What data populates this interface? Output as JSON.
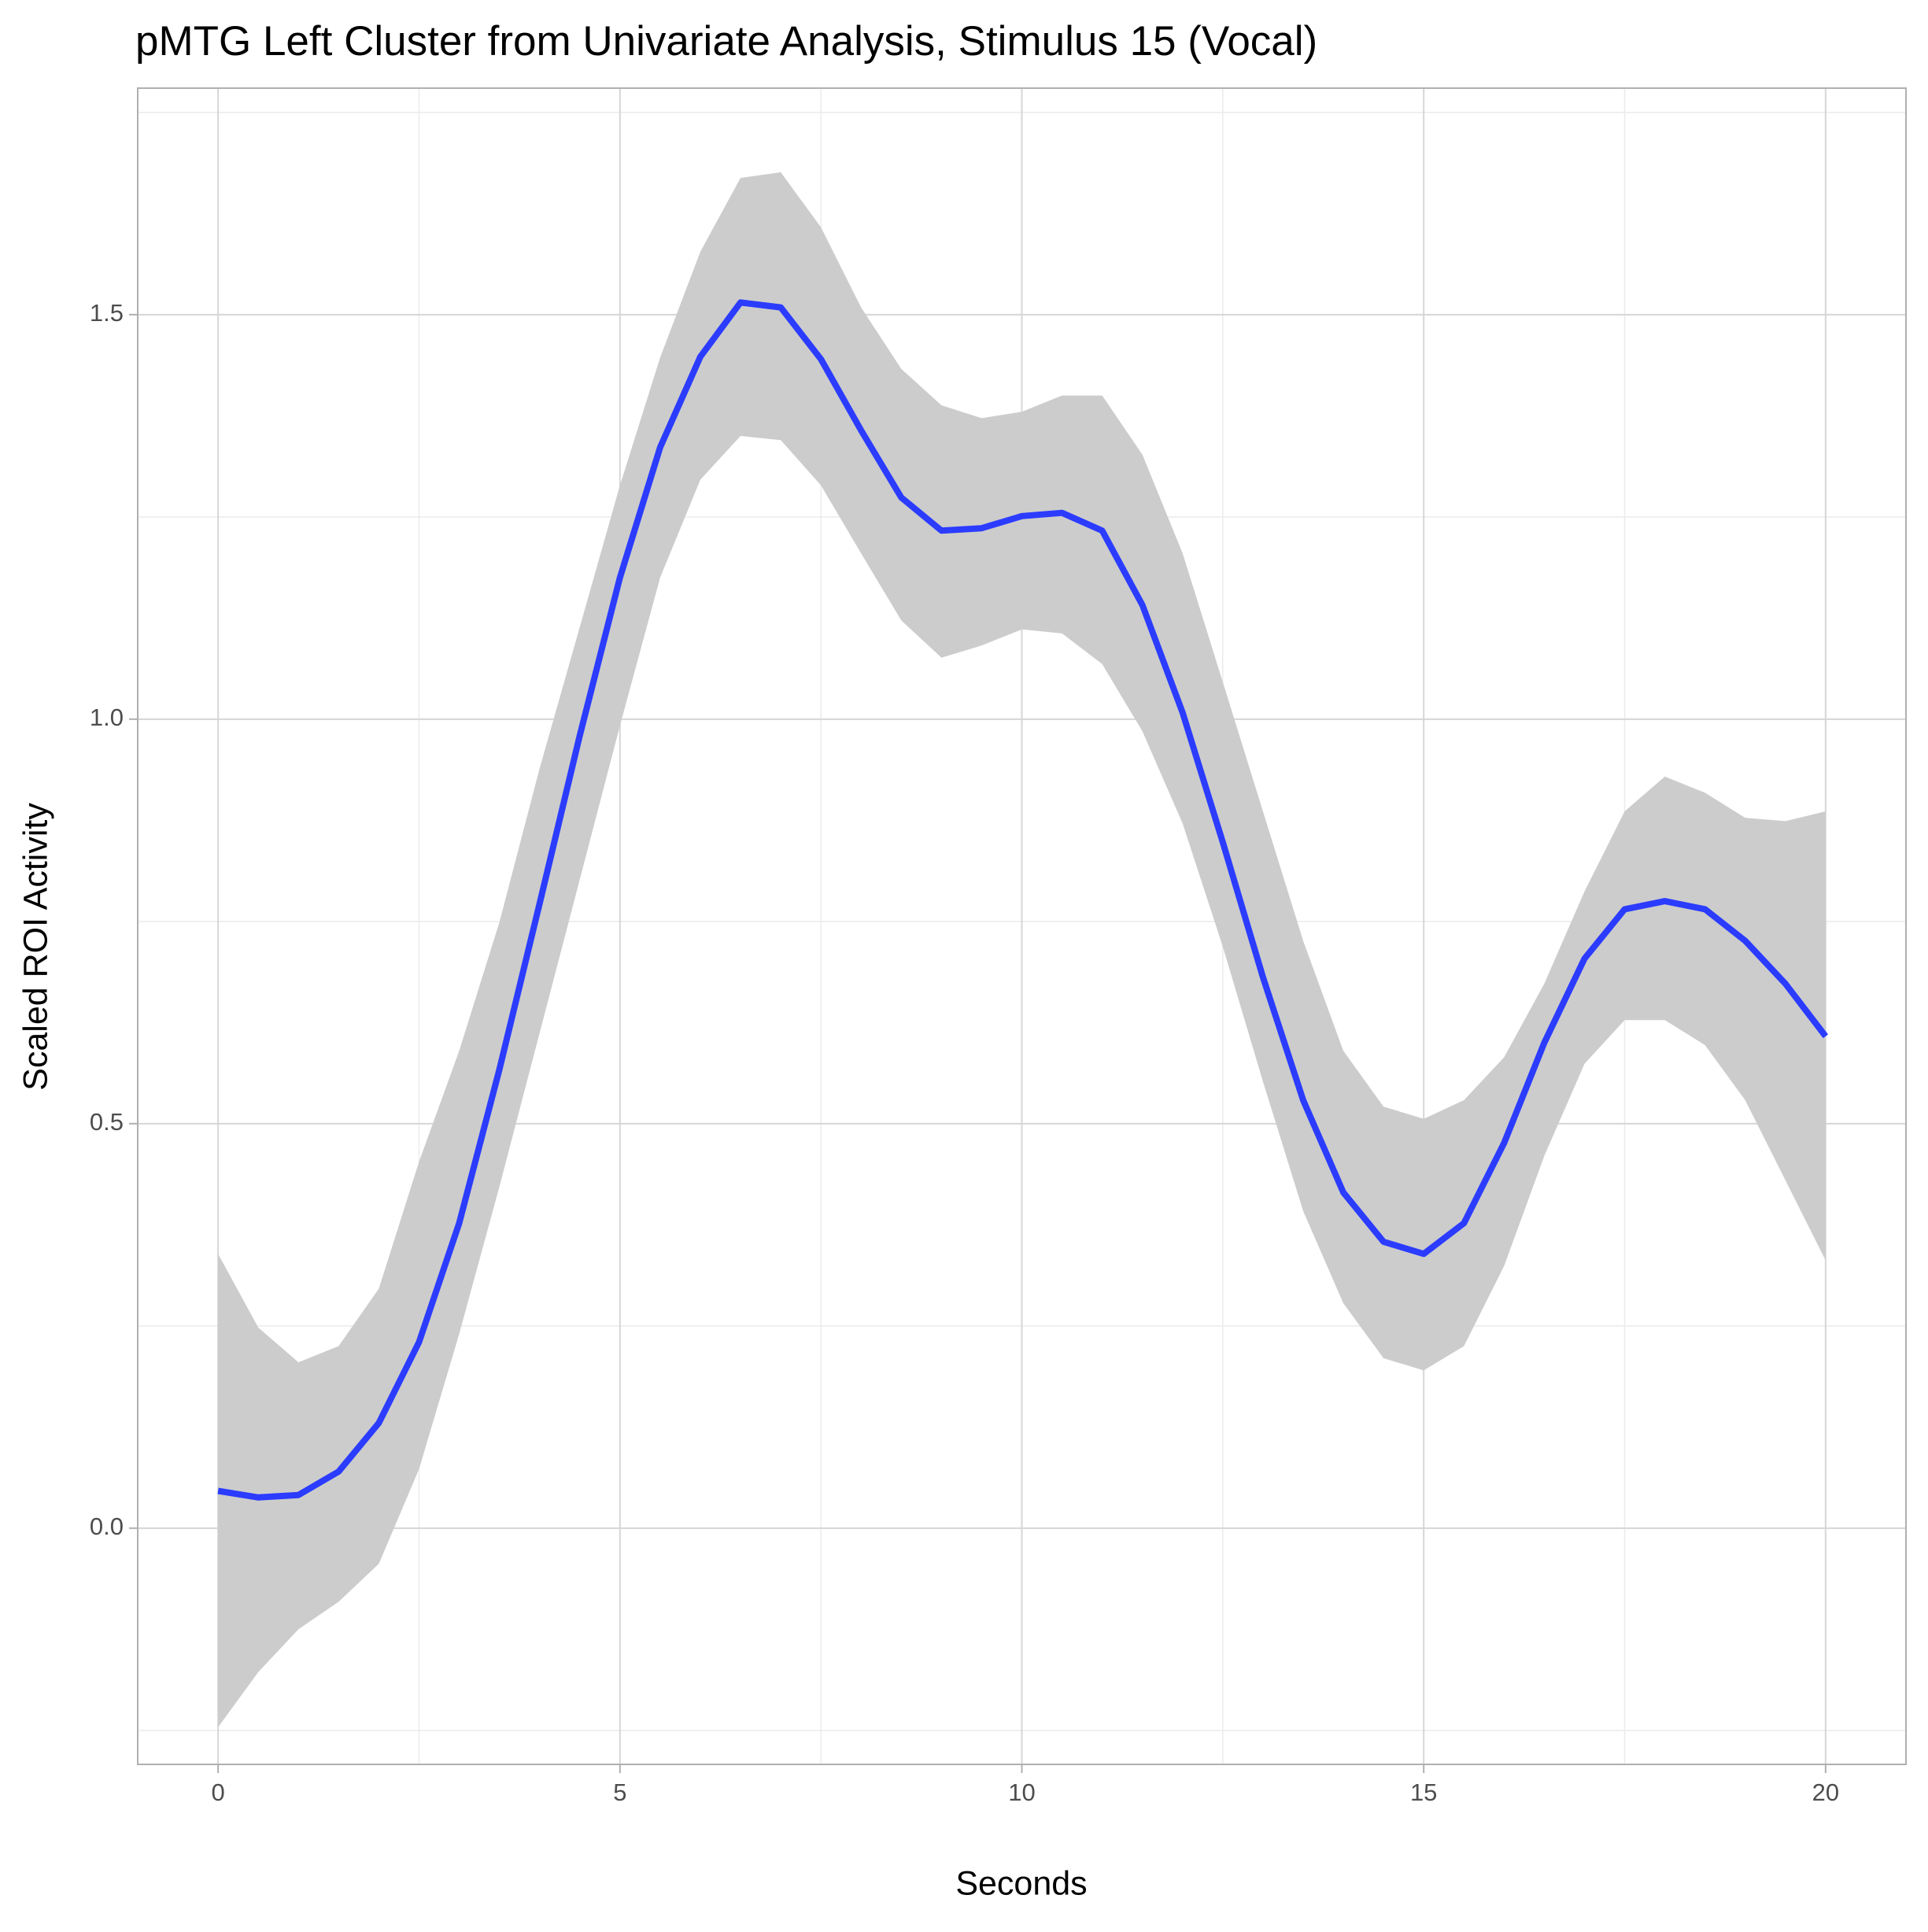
{
  "chart_data": {
    "type": "line",
    "title": "pMTG Left Cluster from Univariate Analysis, Stimulus 15 (Vocal)",
    "x_label": "Seconds",
    "y_label": "Scaled ROI Activity",
    "x": [
      0,
      0.5,
      1,
      1.5,
      2,
      2.5,
      3,
      3.5,
      4,
      4.5,
      5,
      5.5,
      6,
      6.5,
      7,
      7.5,
      8,
      8.5,
      9,
      9.5,
      10,
      10.5,
      11,
      11.5,
      12,
      12.5,
      13,
      13.5,
      14,
      14.5,
      15,
      15.5,
      16,
      16.5,
      17,
      17.5,
      18,
      18.5,
      19,
      19.5,
      20
    ],
    "series": [
      {
        "color": "#2b3cff",
        "band_color": "#cccccc",
        "values": [
          0.046,
          0.038,
          0.041,
          0.07,
          0.13,
          0.23,
          0.377,
          0.567,
          0.772,
          0.98,
          1.175,
          1.336,
          1.448,
          1.515,
          1.509,
          1.445,
          1.357,
          1.274,
          1.233,
          1.236,
          1.251,
          1.255,
          1.233,
          1.141,
          1.008,
          0.848,
          0.681,
          0.529,
          0.415,
          0.354,
          0.339,
          0.377,
          0.476,
          0.6,
          0.704,
          0.765,
          0.775,
          0.765,
          0.726,
          0.673,
          0.608
        ],
        "upper": [
          0.339,
          0.248,
          0.205,
          0.225,
          0.296,
          0.453,
          0.59,
          0.749,
          0.939,
          1.114,
          1.289,
          1.447,
          1.578,
          1.669,
          1.676,
          1.608,
          1.509,
          1.433,
          1.388,
          1.372,
          1.38,
          1.4,
          1.4,
          1.327,
          1.205,
          1.046,
          0.886,
          0.726,
          0.59,
          0.521,
          0.506,
          0.529,
          0.582,
          0.673,
          0.787,
          0.886,
          0.929,
          0.909,
          0.878,
          0.874,
          0.886
        ],
        "lower": [
          -0.246,
          -0.178,
          -0.125,
          -0.091,
          -0.044,
          0.073,
          0.24,
          0.422,
          0.612,
          0.802,
          0.992,
          1.175,
          1.296,
          1.35,
          1.345,
          1.289,
          1.205,
          1.122,
          1.076,
          1.091,
          1.111,
          1.106,
          1.068,
          0.985,
          0.871,
          0.719,
          0.552,
          0.392,
          0.278,
          0.21,
          0.195,
          0.225,
          0.324,
          0.46,
          0.574,
          0.628,
          0.628,
          0.597,
          0.529,
          0.43,
          0.331
        ]
      }
    ],
    "xlim": [
      -1,
      21
    ],
    "ylim": [
      -0.292,
      1.78
    ],
    "xticks": [
      0,
      5,
      10,
      15,
      20
    ],
    "yticks": [
      {
        "value": 0,
        "label": "0.0"
      },
      0.5,
      {
        "value": 1,
        "label": "1.0"
      },
      1.5
    ],
    "grid": true
  }
}
